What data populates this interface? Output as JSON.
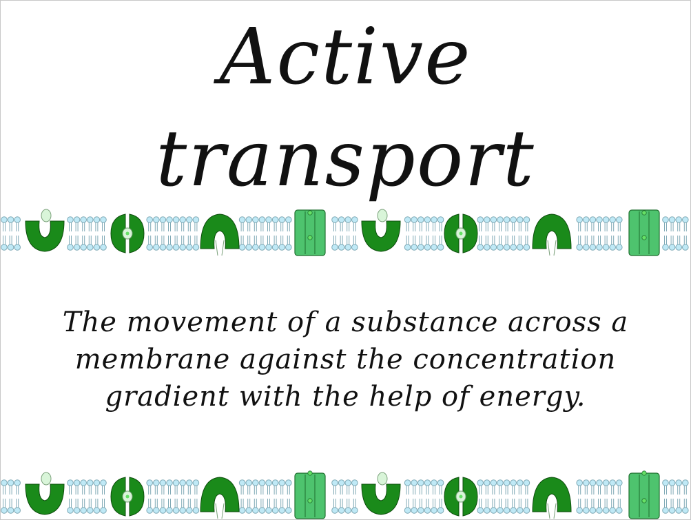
{
  "slide": {
    "title_line1": "Active",
    "title_line2": "transport",
    "definition": "The movement of a substance across a membrane against the concentration gradient with the help of energy."
  },
  "colors": {
    "protein_dark": "#1a8a1a",
    "protein_light": "#4ec36e",
    "lipid_head": "#bfe9f6",
    "lipid_outline": "#7fa9b5"
  },
  "membrane_sequence": [
    "carrier-open-top",
    "carrier-closed",
    "carrier-open-bottom",
    "channel",
    "carrier-open-top",
    "carrier-closed",
    "carrier-open-bottom",
    "channel"
  ]
}
